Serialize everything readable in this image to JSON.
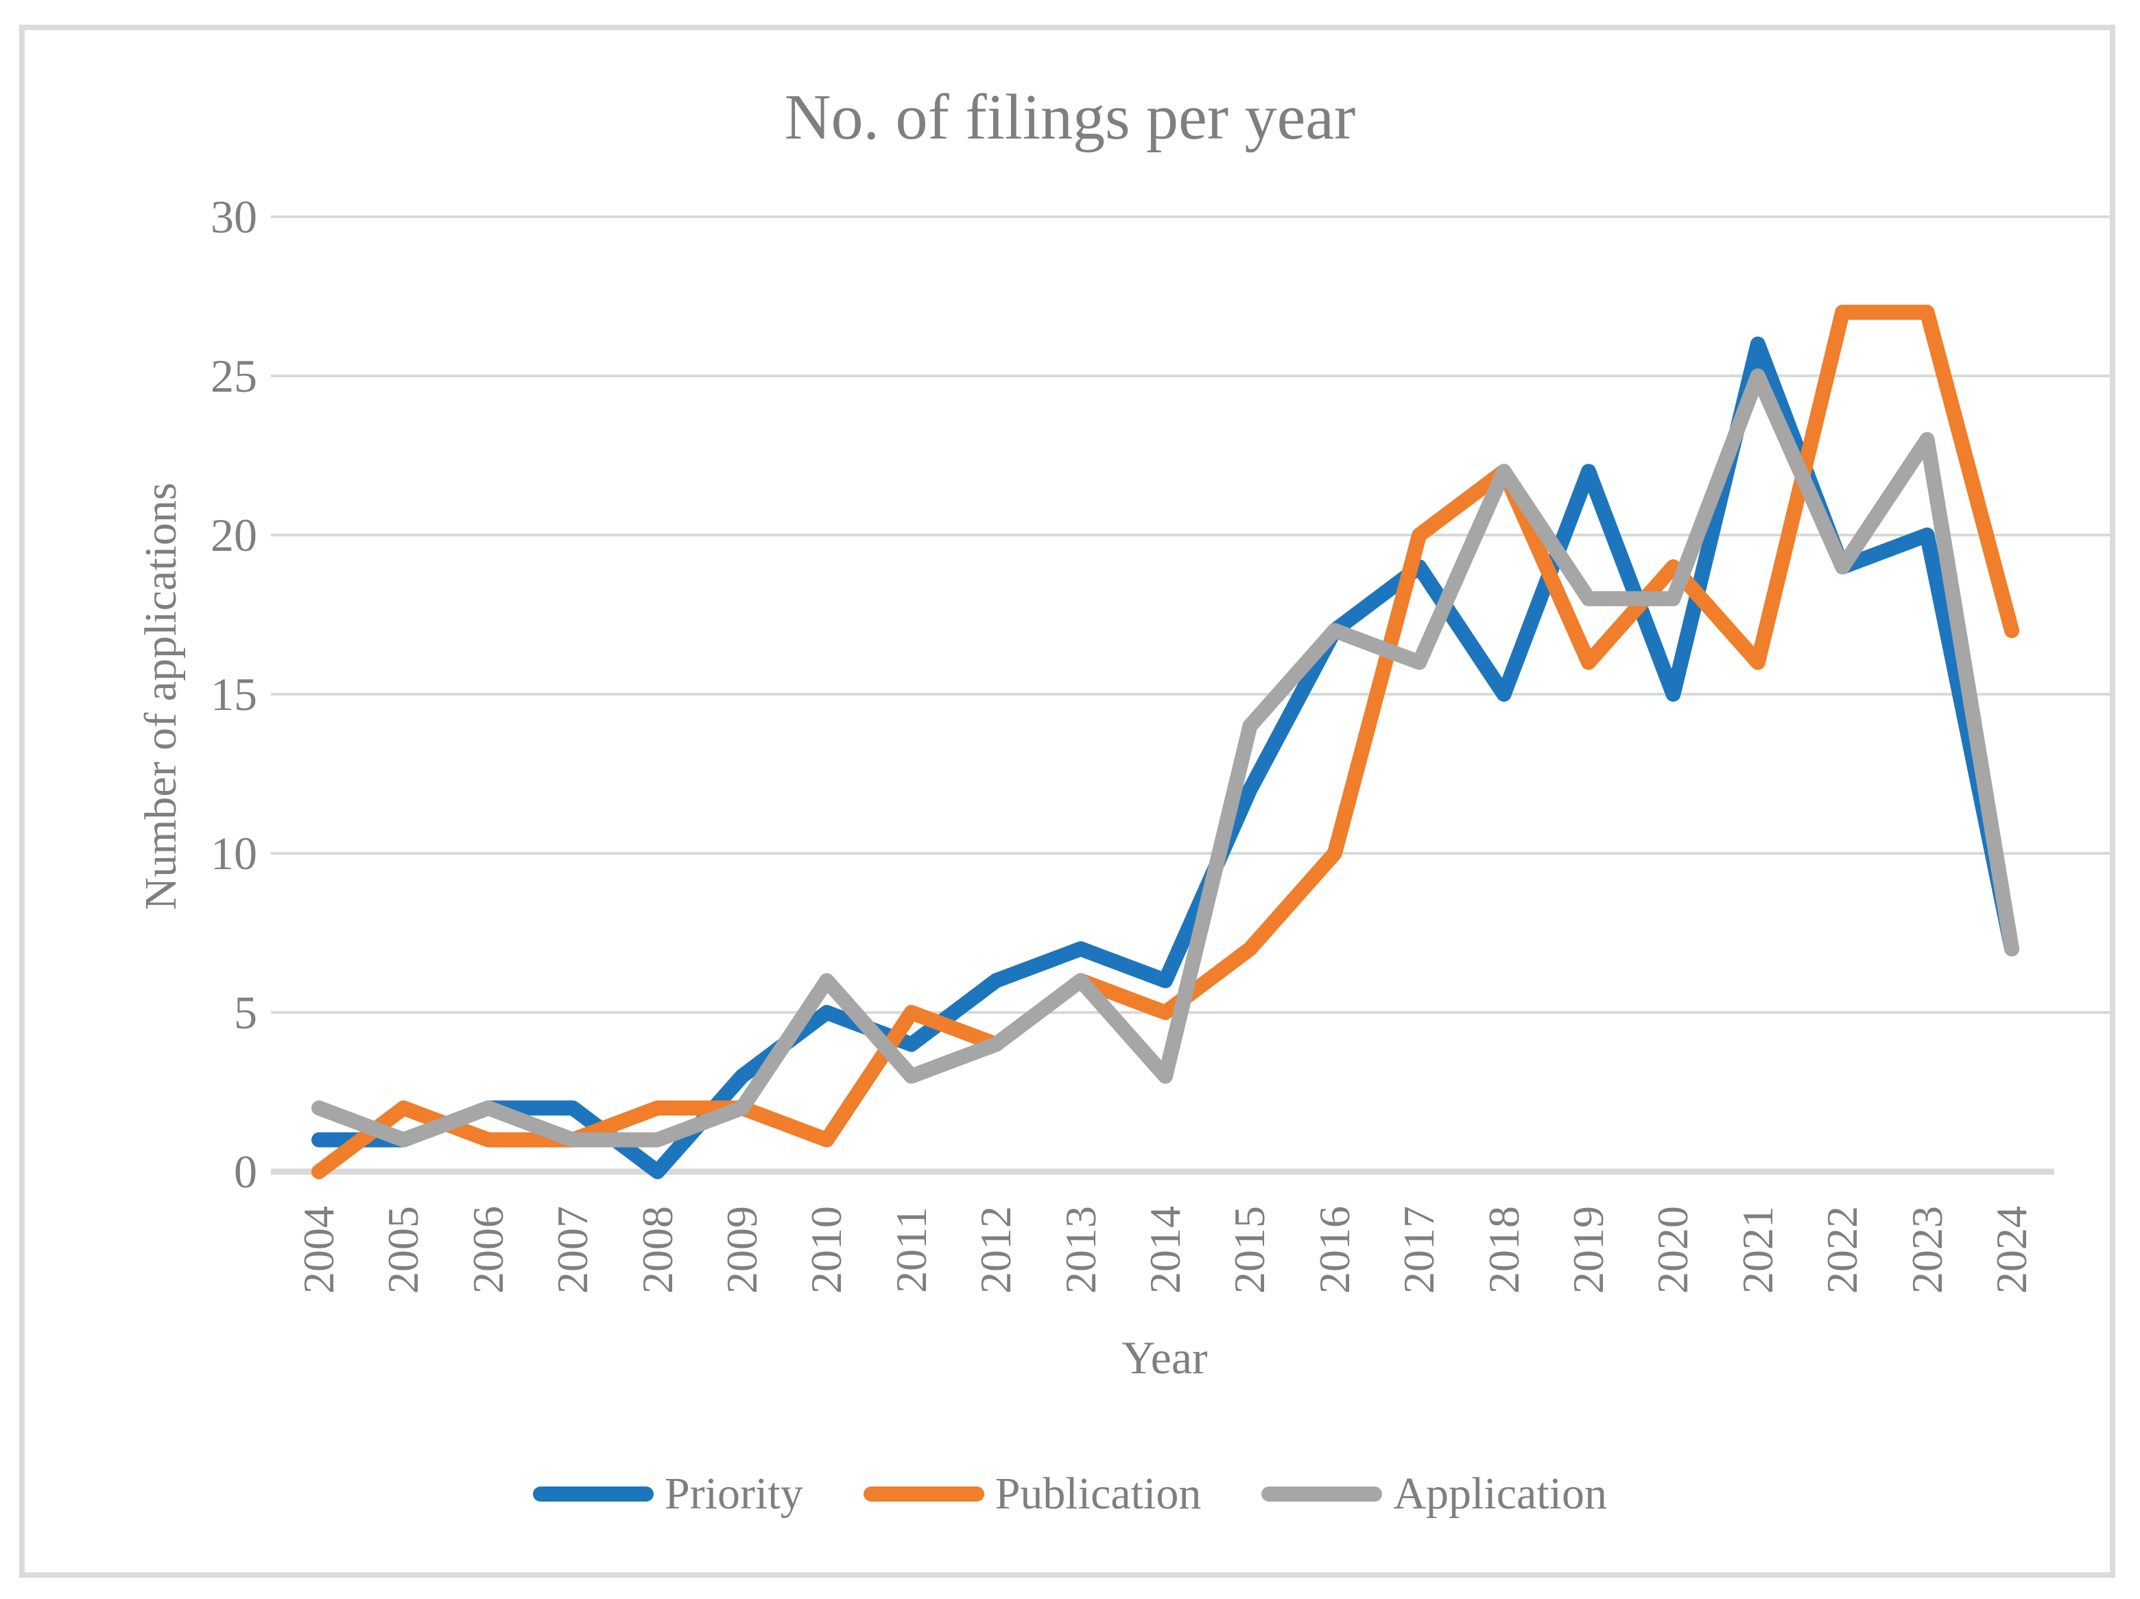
{
  "figure": {
    "title": "No. of filings per year"
  },
  "axes": {
    "y_title": "Number of applications",
    "x_title": "Year"
  },
  "colors": {
    "grid": "#d9d9d9",
    "axis_line": "#d9d9d9",
    "text": "#7f7f7f",
    "border": "#dbdbdb",
    "priority_blue": "#1d76bd",
    "publication_orange": "#f07e2a",
    "application_gray": "#a6a6a6"
  },
  "chart_data": {
    "type": "line",
    "title": "No. of filings per year",
    "xlabel": "Year",
    "ylabel": "Number of applications",
    "ylim": [
      0,
      30
    ],
    "y_tick_step": 5,
    "y_ticks": [
      0,
      5,
      10,
      15,
      20,
      25,
      30
    ],
    "grid": true,
    "legend_position": "bottom",
    "categories": [
      2004,
      2005,
      2006,
      2007,
      2008,
      2009,
      2010,
      2011,
      2012,
      2013,
      2014,
      2015,
      2016,
      2017,
      2018,
      2019,
      2020,
      2021,
      2022,
      2023,
      2024
    ],
    "series": [
      {
        "name": "Priority",
        "color": "#1d76bd",
        "values": [
          1,
          1,
          2,
          2,
          0,
          3,
          5,
          4,
          6,
          7,
          6,
          12,
          17,
          19,
          15,
          22,
          15,
          26,
          19,
          20,
          7
        ]
      },
      {
        "name": "Publication",
        "color": "#f07e2a",
        "values": [
          0,
          2,
          1,
          1,
          2,
          2,
          1,
          5,
          4,
          6,
          5,
          7,
          10,
          20,
          22,
          16,
          19,
          16,
          27,
          27,
          17
        ]
      },
      {
        "name": "Application",
        "color": "#a6a6a6",
        "values": [
          2,
          1,
          2,
          1,
          1,
          2,
          6,
          3,
          4,
          6,
          3,
          14,
          17,
          16,
          22,
          18,
          18,
          25,
          19,
          23,
          7
        ]
      }
    ]
  }
}
